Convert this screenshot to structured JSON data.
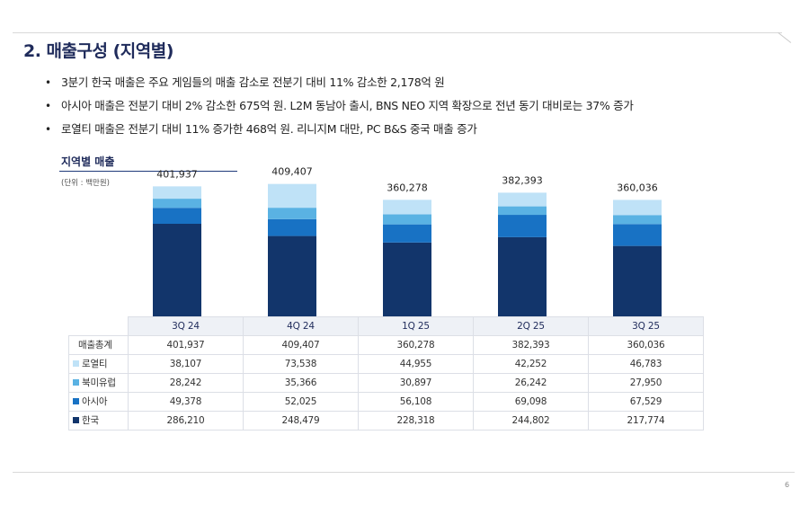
{
  "title": "2. 매출구성 (지역별)",
  "bullets": [
    "3분기 한국 매출은 주요 게임들의 매출 감소로 전분기 대비 11% 감소한 2,178억 원",
    "아시아 매출은 전분기 대비 2% 감소한 675억 원. L2M 동남아 출시, BNS NEO 지역 확장으로 전년 동기 대비로는 37% 증가",
    "로열티 매출은 전분기 대비 11% 증가한 468억 원. 리니지M 대만, PC B&S 중국 매출 증가"
  ],
  "chart_title": "지역별 매출",
  "unit": "(단위 : 백만원)",
  "page_number": "6",
  "colors": {
    "royalty": "#bfe2f7",
    "na_eu": "#5ab2e3",
    "asia": "#1872c4",
    "korea": "#12356b",
    "title": "#1f2b5b"
  },
  "chart_data": {
    "type": "bar",
    "stacked": true,
    "categories": [
      "3Q 24",
      "4Q 24",
      "1Q 25",
      "2Q 25",
      "3Q 25"
    ],
    "series": [
      {
        "name": "한국",
        "color": "#12356b",
        "values": [
          286210,
          248479,
          228318,
          244802,
          217774
        ]
      },
      {
        "name": "아시아",
        "color": "#1872c4",
        "values": [
          49378,
          52025,
          56108,
          69098,
          67529
        ]
      },
      {
        "name": "북미유럽",
        "color": "#5ab2e3",
        "values": [
          28242,
          35366,
          30897,
          26242,
          27950
        ]
      },
      {
        "name": "로열티",
        "color": "#bfe2f7",
        "values": [
          38107,
          73538,
          44955,
          42252,
          46783
        ]
      }
    ],
    "totals": [
      401937,
      409407,
      360278,
      382393,
      360036
    ],
    "total_labels": [
      "401,937",
      "409,407",
      "360,278",
      "382,393",
      "360,036"
    ],
    "ylim": [
      0,
      450000
    ]
  },
  "table": {
    "headers": [
      "3Q 24",
      "4Q 24",
      "1Q 25",
      "2Q 25",
      "3Q 25"
    ],
    "rows": [
      {
        "label": "매출총계",
        "swatch": "",
        "values": [
          "401,937",
          "409,407",
          "360,278",
          "382,393",
          "360,036"
        ]
      },
      {
        "label": "로열티",
        "swatch": "#bfe2f7",
        "values": [
          "38,107",
          "73,538",
          "44,955",
          "42,252",
          "46,783"
        ]
      },
      {
        "label": "북미유럽",
        "swatch": "#5ab2e3",
        "values": [
          "28,242",
          "35,366",
          "30,897",
          "26,242",
          "27,950"
        ]
      },
      {
        "label": "아시아",
        "swatch": "#1872c4",
        "values": [
          "49,378",
          "52,025",
          "56,108",
          "69,098",
          "67,529"
        ]
      },
      {
        "label": "한국",
        "swatch": "#12356b",
        "values": [
          "286,210",
          "248,479",
          "228,318",
          "244,802",
          "217,774"
        ]
      }
    ]
  }
}
